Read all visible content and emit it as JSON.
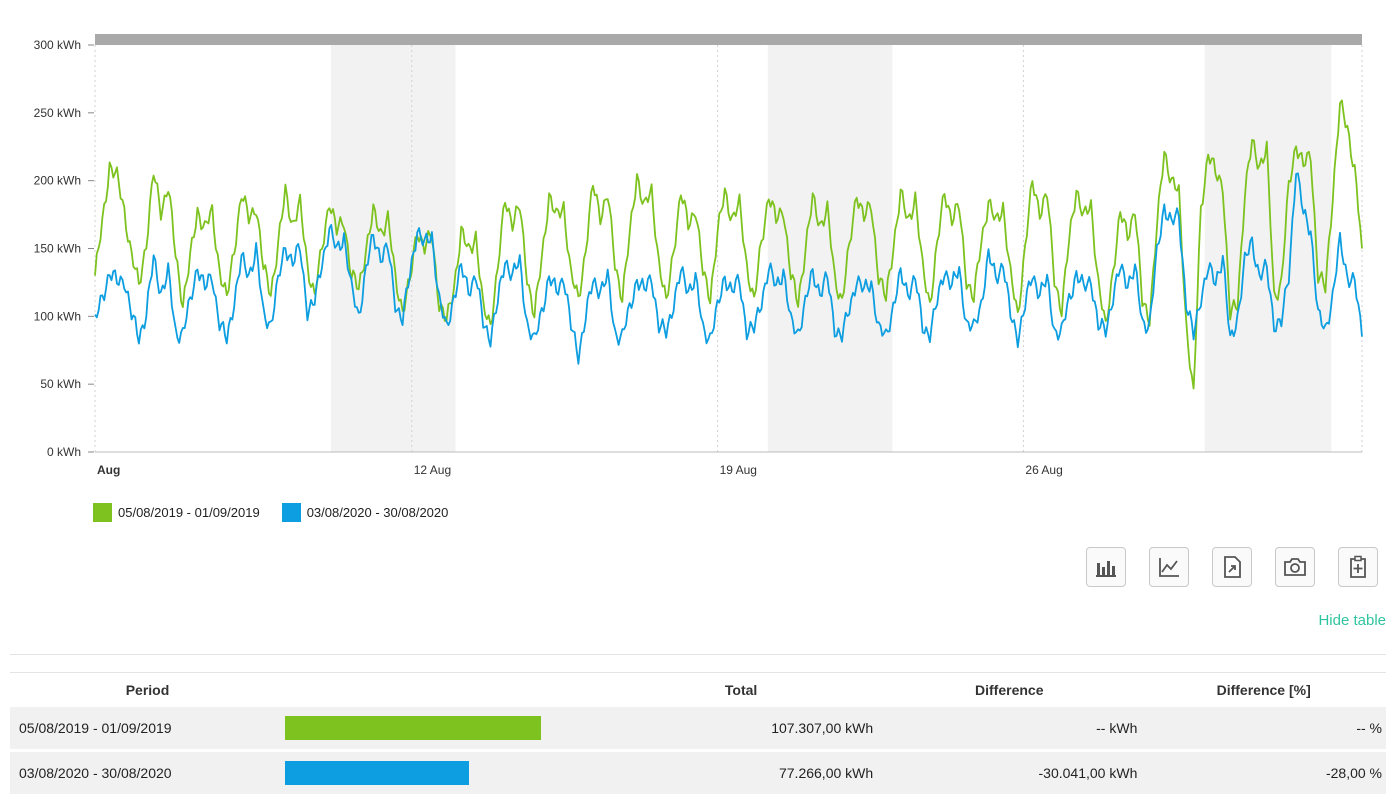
{
  "chart_data": {
    "type": "line",
    "y_unit": "kWh",
    "y_ticks": [
      "300 kWh",
      "250 kWh",
      "200 kWh",
      "150 kWh",
      "100 kWh",
      "50 kWh",
      "0 kWh"
    ],
    "ylim": [
      0,
      300
    ],
    "x_ticks": [
      "Aug",
      "12 Aug",
      "19 Aug",
      "26 Aug"
    ],
    "grid": "vertical dashed, weekend bands shaded",
    "legend_position": "bottom-left",
    "series": [
      {
        "name": "05/08/2019 - 01/09/2019",
        "color": "#7dc21e",
        "daily": [
          [
            130,
            168,
            212,
            202,
            178,
            145
          ],
          [
            122,
            155,
            205,
            178,
            196,
            145
          ],
          [
            110,
            142,
            178,
            165,
            176,
            135
          ],
          [
            112,
            150,
            190,
            172,
            182,
            135
          ],
          [
            118,
            152,
            192,
            168,
            182,
            138
          ],
          [
            115,
            150,
            186,
            162,
            172,
            130
          ],
          [
            120,
            150,
            176,
            162,
            172,
            128
          ],
          [
            105,
            125,
            165,
            150,
            160,
            110
          ],
          [
            95,
            122,
            162,
            148,
            160,
            105
          ],
          [
            95,
            135,
            186,
            170,
            180,
            130
          ],
          [
            100,
            142,
            190,
            172,
            182,
            130
          ],
          [
            112,
            150,
            196,
            175,
            190,
            138
          ],
          [
            115,
            158,
            205,
            180,
            192,
            140
          ],
          [
            108,
            150,
            190,
            168,
            180,
            132
          ],
          [
            115,
            160,
            192,
            172,
            182,
            138
          ],
          [
            110,
            155,
            190,
            170,
            180,
            130
          ],
          [
            110,
            150,
            186,
            168,
            178,
            128
          ],
          [
            112,
            150,
            192,
            172,
            182,
            130
          ],
          [
            112,
            152,
            190,
            170,
            188,
            135
          ],
          [
            110,
            152,
            192,
            172,
            180,
            128
          ],
          [
            112,
            155,
            185,
            168,
            182,
            130
          ],
          [
            100,
            152,
            198,
            178,
            190,
            128
          ],
          [
            105,
            155,
            195,
            172,
            182,
            125
          ],
          [
            90,
            135,
            175,
            160,
            180,
            110
          ],
          [
            100,
            165,
            222,
            200,
            190,
            95
          ],
          [
            40,
            180,
            220,
            205,
            198,
            100
          ],
          [
            110,
            190,
            228,
            212,
            222,
            115
          ],
          [
            125,
            195,
            228,
            210,
            220,
            130
          ],
          [
            120,
            190,
            255,
            240,
            208,
            150
          ]
        ]
      },
      {
        "name": "03/08/2020 - 30/08/2020",
        "color": "#0c9ee0",
        "daily": [
          [
            95,
            115,
            132,
            125,
            128,
            100
          ],
          [
            85,
            102,
            142,
            118,
            132,
            88
          ],
          [
            88,
            110,
            138,
            120,
            130,
            95
          ],
          [
            82,
            112,
            142,
            130,
            150,
            100
          ],
          [
            95,
            125,
            152,
            140,
            150,
            105
          ],
          [
            110,
            140,
            165,
            148,
            160,
            120
          ],
          [
            100,
            135,
            158,
            145,
            150,
            110
          ],
          [
            98,
            130,
            165,
            152,
            160,
            112
          ],
          [
            90,
            115,
            135,
            120,
            130,
            95
          ],
          [
            85,
            110,
            142,
            130,
            140,
            95
          ],
          [
            80,
            105,
            128,
            118,
            130,
            92
          ],
          [
            72,
            100,
            125,
            120,
            128,
            88
          ],
          [
            85,
            105,
            128,
            118,
            130,
            92
          ],
          [
            88,
            110,
            132,
            120,
            128,
            90
          ],
          [
            85,
            105,
            130,
            118,
            126,
            90
          ],
          [
            90,
            112,
            135,
            122,
            134,
            95
          ],
          [
            88,
            110,
            132,
            118,
            128,
            92
          ],
          [
            85,
            105,
            128,
            118,
            126,
            90
          ],
          [
            85,
            108,
            130,
            118,
            128,
            92
          ],
          [
            88,
            110,
            135,
            122,
            134,
            95
          ],
          [
            90,
            110,
            145,
            128,
            140,
            100
          ],
          [
            85,
            108,
            130,
            118,
            126,
            90
          ],
          [
            88,
            112,
            132,
            120,
            128,
            92
          ],
          [
            90,
            115,
            135,
            125,
            135,
            95
          ],
          [
            95,
            145,
            182,
            168,
            175,
            110
          ],
          [
            85,
            115,
            135,
            125,
            145,
            80
          ],
          [
            100,
            140,
            155,
            130,
            135,
            95
          ],
          [
            95,
            130,
            210,
            175,
            165,
            100
          ],
          [
            90,
            115,
            155,
            130,
            125,
            85
          ]
        ]
      }
    ]
  },
  "toolbar": {
    "buttons": [
      "bar-chart-icon",
      "line-chart-icon",
      "export-document-icon",
      "camera-icon",
      "add-to-clipboard-icon"
    ]
  },
  "hide_table_label": "Hide table",
  "table": {
    "headers": [
      "Period",
      "",
      "Total",
      "Difference",
      "Difference [%]"
    ],
    "rows": [
      {
        "period": "05/08/2019 - 01/09/2019",
        "bar_fraction": 1.0,
        "color": "#7dc21e",
        "total": "107.307,00 kWh",
        "difference": "-- kWh",
        "difference_pct": "-- %"
      },
      {
        "period": "03/08/2020 - 30/08/2020",
        "bar_fraction": 0.72,
        "color": "#0c9ee0",
        "total": "77.266,00 kWh",
        "difference": "-30.041,00 kWh",
        "difference_pct": "-28,00 %"
      }
    ]
  }
}
